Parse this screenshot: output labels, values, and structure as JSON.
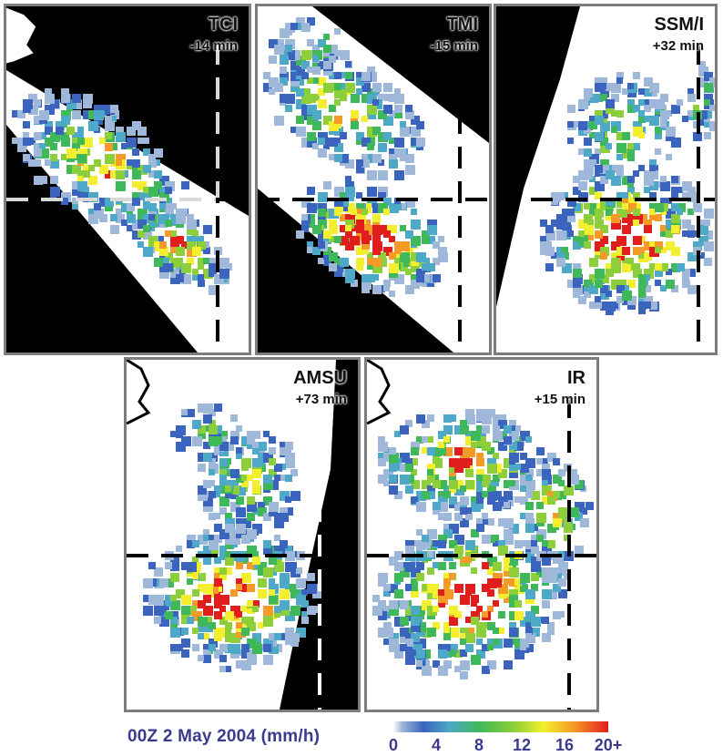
{
  "panels": [
    {
      "id": "tci",
      "sensor": "TCI",
      "offset": "-14 min"
    },
    {
      "id": "tmi",
      "sensor": "TMI",
      "offset": "-15 min"
    },
    {
      "id": "ssmi",
      "sensor": "SSM/I",
      "offset": "+32 min"
    },
    {
      "id": "amsu",
      "sensor": "AMSU",
      "offset": "+73 min"
    },
    {
      "id": "ir",
      "sensor": "IR",
      "offset": "+15 min"
    }
  ],
  "footer": {
    "title": "00Z 2 May 2004 (mm/h)",
    "colorbar_ticks": [
      "0",
      "4",
      "8",
      "12",
      "16",
      "20+"
    ],
    "colorbar_colors": [
      "#ffffff",
      "#3a64bd",
      "#4ea8c7",
      "#3fb85a",
      "#8ccf3a",
      "#f3ee2e",
      "#f59a27",
      "#e21d1d"
    ]
  },
  "colors": {
    "no_data": "#000000",
    "background": "#ffffff",
    "frame": "#7d7d7d",
    "label_text": "#3b3a8c"
  }
}
